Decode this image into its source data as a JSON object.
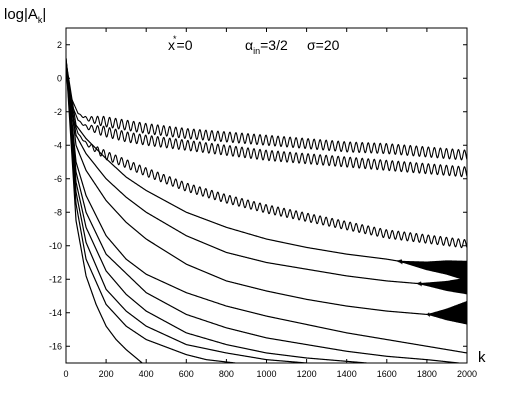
{
  "chart_data": {
    "type": "line",
    "title": "",
    "annotation": {
      "x_star_label": "x",
      "x_star_sup": "*",
      "x_star_value": "=0",
      "alpha_label": "α",
      "alpha_sub": "in",
      "alpha_value": "=3/2",
      "sigma_text": "σ=20"
    },
    "ylabel_main": "log|A",
    "ylabel_sub": "k",
    "ylabel_end": "|",
    "xlabel": "k",
    "xlim": [
      0,
      2000
    ],
    "ylim": [
      -17,
      3
    ],
    "xticks": [
      0,
      200,
      400,
      600,
      800,
      1000,
      1200,
      1400,
      1600,
      1800,
      2000
    ],
    "yticks": [
      2,
      0,
      -2,
      -4,
      -6,
      -8,
      -10,
      -12,
      -14,
      -16
    ],
    "line_color": "#000000",
    "series": [
      {
        "x": [
          0,
          20,
          60,
          100,
          200,
          300,
          400,
          600,
          800,
          1000,
          1200,
          1400,
          1600,
          1800,
          2000
        ],
        "y": [
          1.2,
          -1.0,
          -2.1,
          -2.4,
          -2.6,
          -2.8,
          -3.0,
          -3.3,
          -3.5,
          -3.7,
          -3.9,
          -4.1,
          -4.2,
          -4.4,
          -4.6
        ],
        "osc_amp": 0.3,
        "osc_period": 30
      },
      {
        "x": [
          0,
          20,
          60,
          100,
          200,
          300,
          400,
          600,
          800,
          1000,
          1200,
          1400,
          1600,
          1800,
          2000
        ],
        "y": [
          1.2,
          -1.3,
          -2.5,
          -2.9,
          -3.2,
          -3.5,
          -3.7,
          -4.0,
          -4.3,
          -4.6,
          -4.8,
          -5.0,
          -5.2,
          -5.4,
          -5.6
        ],
        "osc_amp": 0.3,
        "osc_period": 30
      },
      {
        "x": [
          0,
          20,
          60,
          100,
          200,
          300,
          400,
          600,
          800,
          1000,
          1200,
          1400,
          1600,
          1800,
          2000
        ],
        "y": [
          1.2,
          -1.8,
          -3.3,
          -3.9,
          -4.6,
          -5.1,
          -5.6,
          -6.5,
          -7.2,
          -7.8,
          -8.3,
          -8.8,
          -9.3,
          -9.6,
          -9.9
        ],
        "osc_amp": 0.25,
        "osc_period": 30
      },
      {
        "x": [
          0,
          50,
          100,
          200,
          300,
          400,
          600,
          800,
          1000,
          1200,
          1400,
          1600,
          1700,
          1800,
          1900,
          2000
        ],
        "y": [
          1.0,
          -2.8,
          -3.6,
          -4.8,
          -5.9,
          -6.7,
          -8.0,
          -8.9,
          -9.6,
          -10.1,
          -10.5,
          -10.8,
          -11.0,
          -11.2,
          -11.3,
          -11.5
        ],
        "burst_start": 1650,
        "burst_amp": 0.6
      },
      {
        "x": [
          0,
          50,
          100,
          200,
          300,
          400,
          600,
          800,
          1000,
          1200,
          1400,
          1600,
          1700,
          1800,
          1900,
          2000
        ],
        "y": [
          1.0,
          -3.4,
          -4.5,
          -6.0,
          -7.1,
          -8.0,
          -9.4,
          -10.4,
          -11.0,
          -11.4,
          -11.8,
          -12.1,
          -12.2,
          -12.3,
          -12.4,
          -12.4
        ],
        "burst_start": 1750,
        "burst_amp": 0.5
      },
      {
        "x": [
          0,
          50,
          100,
          200,
          300,
          400,
          600,
          800,
          1000,
          1200,
          1400,
          1600,
          1700,
          1800,
          1900,
          2000
        ],
        "y": [
          1.0,
          -4.0,
          -5.5,
          -7.3,
          -8.6,
          -9.6,
          -11.1,
          -12.1,
          -12.7,
          -13.2,
          -13.6,
          -13.9,
          -14.0,
          -14.1,
          -14.1,
          -14.0
        ],
        "burst_start": 1800,
        "burst_amp": 0.7
      },
      {
        "x": [
          0,
          50,
          100,
          200,
          300,
          400,
          600,
          800,
          1000,
          1200,
          1400,
          1600,
          1800,
          2000
        ],
        "y": [
          1.0,
          -5.0,
          -7.0,
          -9.4,
          -10.8,
          -11.7,
          -12.8,
          -13.6,
          -14.2,
          -14.7,
          -15.2,
          -15.6,
          -16.0,
          -16.4
        ]
      },
      {
        "x": [
          0,
          50,
          100,
          200,
          400,
          600,
          800,
          1000,
          1200,
          1400,
          1600,
          1800,
          1960
        ],
        "y": [
          1.0,
          -5.6,
          -8.0,
          -10.5,
          -12.8,
          -14.1,
          -14.9,
          -15.5,
          -15.9,
          -16.3,
          -16.6,
          -16.8,
          -17.0
        ]
      },
      {
        "x": [
          0,
          50,
          100,
          200,
          300,
          400,
          600,
          800,
          1000,
          1200,
          1500
        ],
        "y": [
          1.0,
          -6.2,
          -8.9,
          -11.5,
          -12.9,
          -13.9,
          -15.2,
          -15.9,
          -16.4,
          -16.7,
          -17.0
        ]
      },
      {
        "x": [
          0,
          50,
          100,
          200,
          300,
          400,
          600,
          800,
          1000,
          1200
        ],
        "y": [
          1.0,
          -6.8,
          -9.8,
          -12.6,
          -13.9,
          -14.8,
          -15.9,
          -16.4,
          -16.8,
          -17.0
        ]
      },
      {
        "x": [
          0,
          50,
          100,
          200,
          300,
          400,
          600,
          700,
          845
        ],
        "y": [
          1.0,
          -7.5,
          -10.8,
          -13.5,
          -14.8,
          -15.6,
          -16.5,
          -16.8,
          -17.0
        ]
      },
      {
        "x": [
          0,
          50,
          100,
          150,
          200,
          250,
          300,
          350,
          380
        ],
        "y": [
          1.0,
          -8.5,
          -11.8,
          -13.5,
          -14.8,
          -15.6,
          -16.2,
          -16.7,
          -17.0
        ]
      }
    ]
  }
}
